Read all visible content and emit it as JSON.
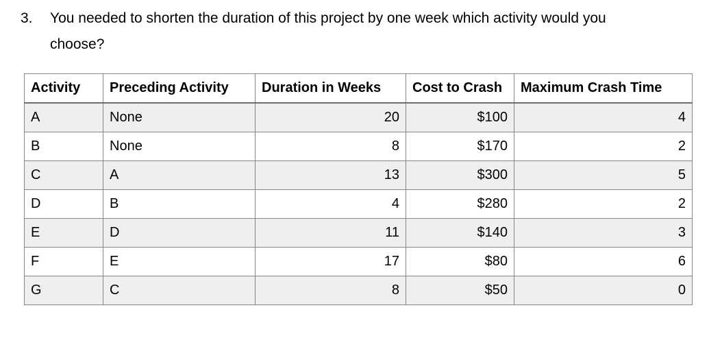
{
  "question": {
    "number": "3.",
    "text": "You needed to shorten the duration of this project by one week which activity would you choose?"
  },
  "table": {
    "headers": [
      "Activity",
      "Preceding Activity",
      "Duration in Weeks",
      "Cost to Crash",
      "Maximum Crash Time"
    ],
    "rows": [
      {
        "activity": "A",
        "preceding": "None",
        "duration": "20",
        "cost": "$100",
        "max_crash": "4"
      },
      {
        "activity": "B",
        "preceding": "None",
        "duration": "8",
        "cost": "$170",
        "max_crash": "2"
      },
      {
        "activity": "C",
        "preceding": "A",
        "duration": "13",
        "cost": "$300",
        "max_crash": "5"
      },
      {
        "activity": "D",
        "preceding": "B",
        "duration": "4",
        "cost": "$280",
        "max_crash": "2"
      },
      {
        "activity": "E",
        "preceding": "D",
        "duration": "11",
        "cost": "$140",
        "max_crash": "3"
      },
      {
        "activity": "F",
        "preceding": "E",
        "duration": "17",
        "cost": "$80",
        "max_crash": "6"
      },
      {
        "activity": "G",
        "preceding": "C",
        "duration": "8",
        "cost": "$50",
        "max_crash": "0"
      }
    ]
  },
  "colors": {
    "row_shaded": "#efefef",
    "row_plain": "#ffffff",
    "border": "#858585",
    "text": "#000000"
  }
}
